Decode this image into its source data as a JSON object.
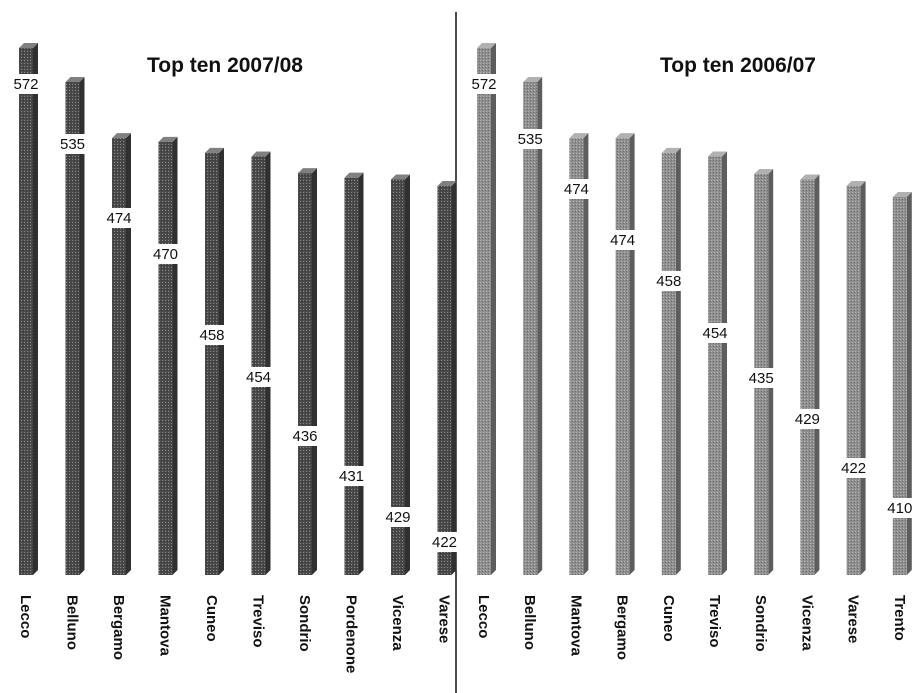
{
  "chart_data": [
    {
      "type": "bar",
      "title": "Top ten 2007/08",
      "categories": [
        "Lecco",
        "Belluno",
        "Bergamo",
        "Mantova",
        "Cuneo",
        "Treviso",
        "Sondrio",
        "Pordenone",
        "Vicenza",
        "Varese"
      ],
      "values": [
        572,
        535,
        474,
        470,
        458,
        454,
        436,
        431,
        429,
        422
      ],
      "bar_color": "#4a4a4a"
    },
    {
      "type": "bar",
      "title": "Top ten 2006/07",
      "categories": [
        "Lecco",
        "Belluno",
        "Mantova",
        "Bergamo",
        "Cuneo",
        "Treviso",
        "Sondrio",
        "Vicenza",
        "Varese",
        "Trento"
      ],
      "values": [
        572,
        535,
        474,
        474,
        458,
        454,
        435,
        429,
        422,
        410
      ],
      "bar_color": "#8f8f8f"
    }
  ]
}
